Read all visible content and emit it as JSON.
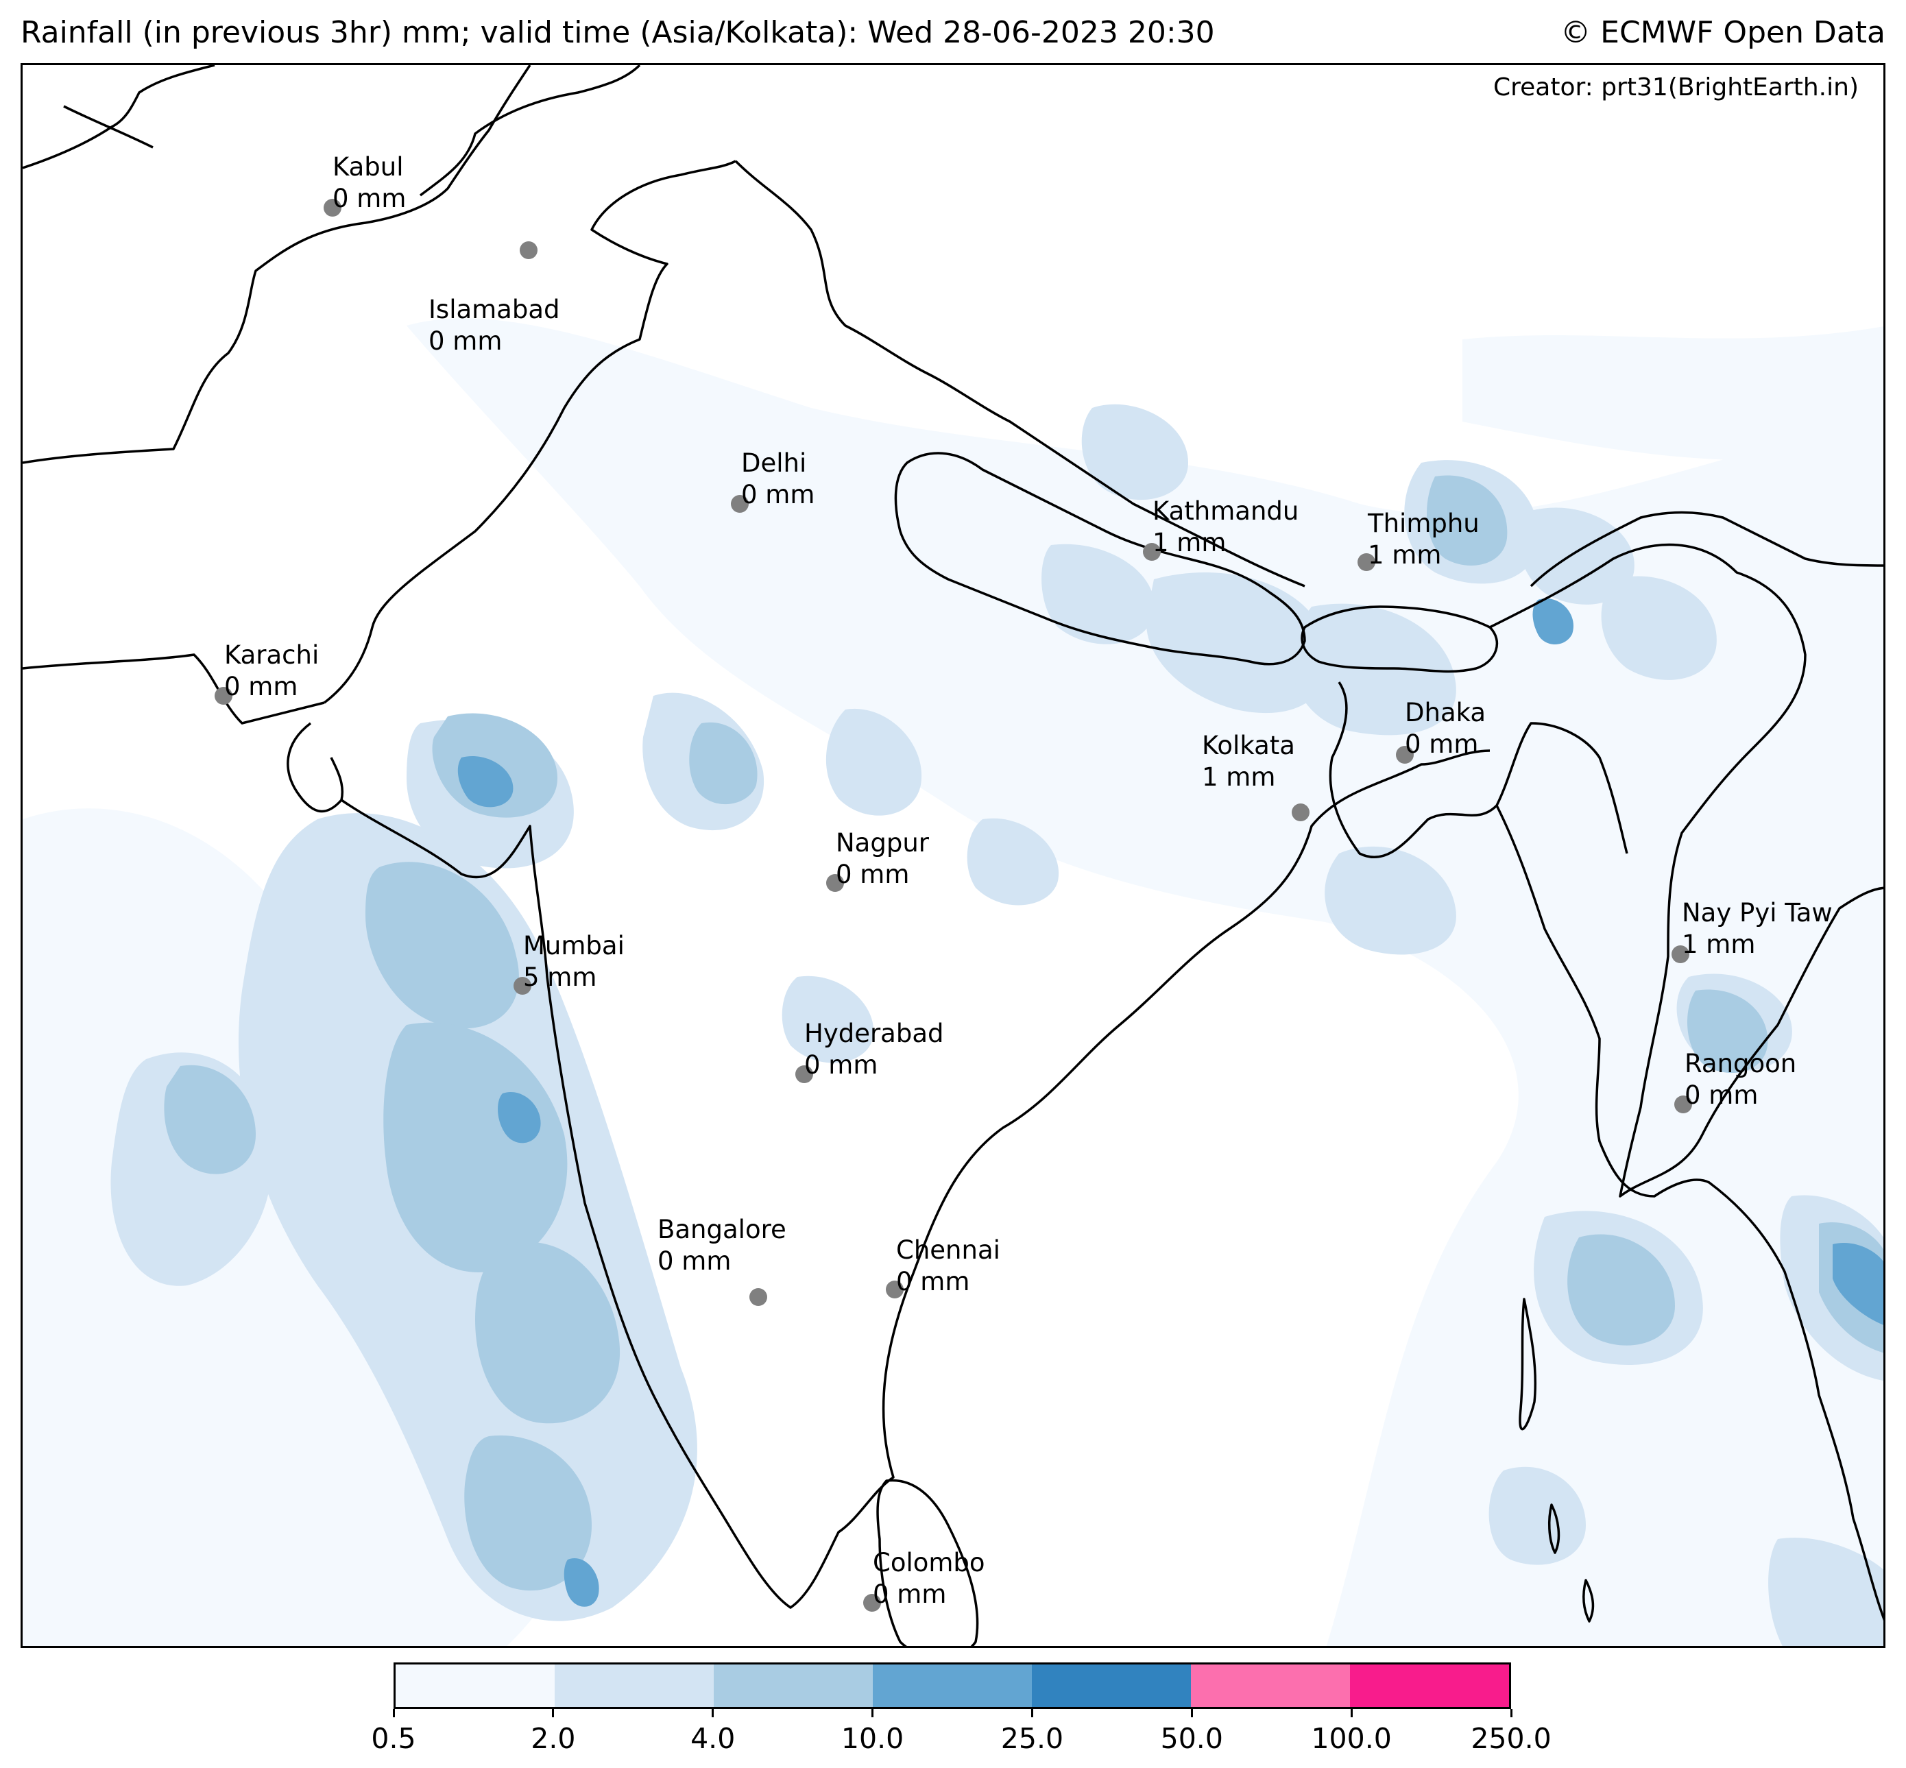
{
  "header": {
    "title": "Rainfall (in previous 3hr) mm; valid time (Asia/Kolkata): Wed 28-06-2023 20:30",
    "copyright": "© ECMWF Open Data",
    "creator": "Creator: prt31(BrightEarth.in)"
  },
  "cities": [
    {
      "name": "Kabul",
      "value": "0 mm"
    },
    {
      "name": "Islamabad",
      "value": "0 mm"
    },
    {
      "name": "Delhi",
      "value": "0 mm"
    },
    {
      "name": "Karachi",
      "value": "0 mm"
    },
    {
      "name": "Kathmandu",
      "value": "1 mm"
    },
    {
      "name": "Thimphu",
      "value": "1 mm"
    },
    {
      "name": "Dhaka",
      "value": "0 mm"
    },
    {
      "name": "Kolkata",
      "value": "1 mm"
    },
    {
      "name": "Nagpur",
      "value": "0 mm"
    },
    {
      "name": "Mumbai",
      "value": "5 mm"
    },
    {
      "name": "Hyderabad",
      "value": "0 mm"
    },
    {
      "name": "Nay Pyi Taw",
      "value": "1 mm"
    },
    {
      "name": "Rangoon",
      "value": "0 mm"
    },
    {
      "name": "Bangalore",
      "value": "0 mm"
    },
    {
      "name": "Chennai",
      "value": "0 mm"
    },
    {
      "name": "Colombo",
      "value": "0 mm"
    }
  ],
  "colorbar": {
    "ticks": [
      "0.5",
      "2.0",
      "4.0",
      "10.0",
      "25.0",
      "50.0",
      "100.0",
      "250.0"
    ],
    "colors": [
      "#f4f9fe",
      "#d3e4f3",
      "#a9cce3",
      "#62a5d2",
      "#3183bf",
      "#fc6fae",
      "#f81c8c"
    ]
  },
  "map_colors": {
    "coastline": "#000000",
    "city_marker": "#808080"
  }
}
